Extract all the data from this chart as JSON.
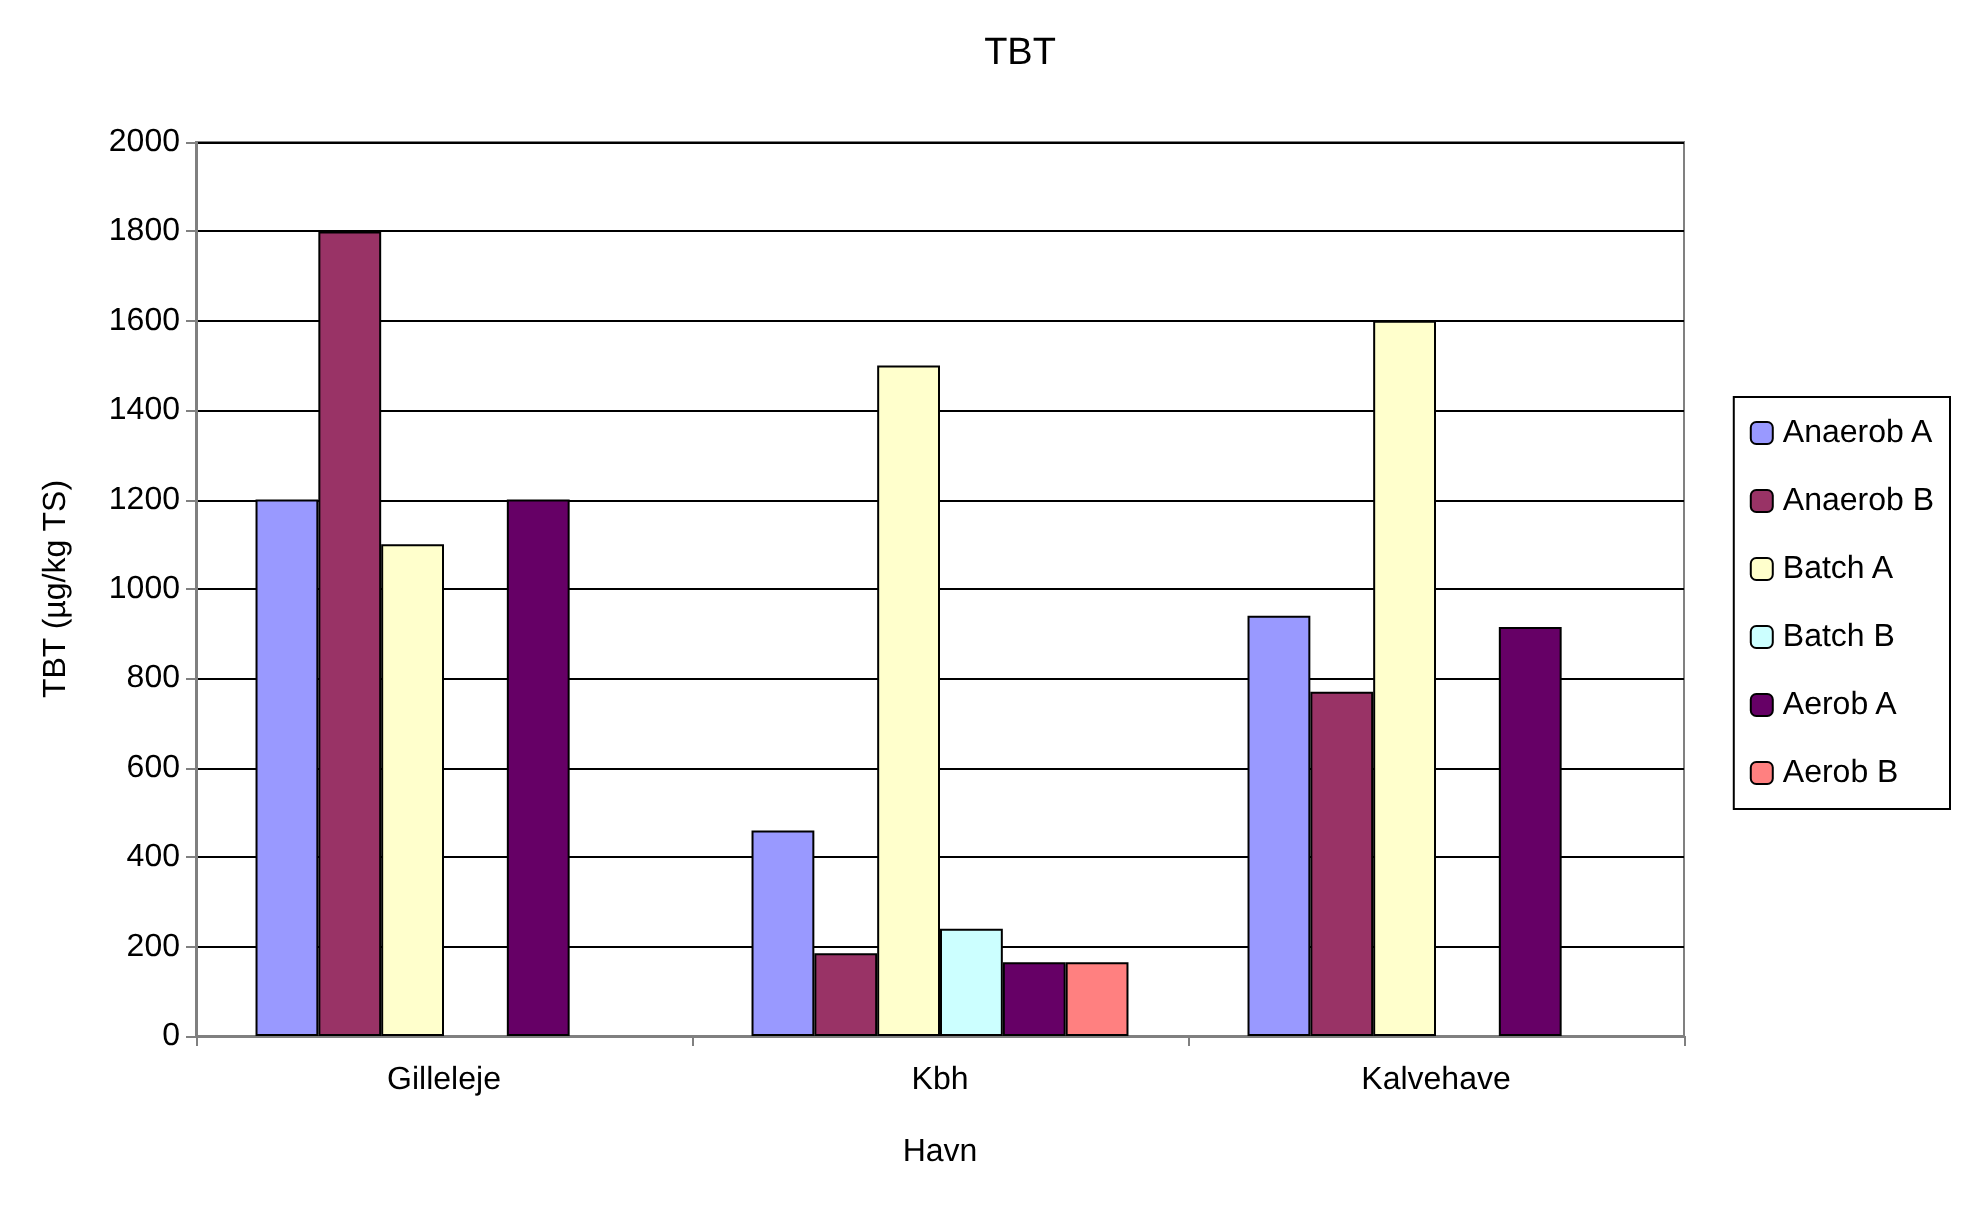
{
  "chart_data": {
    "type": "bar",
    "title": "TBT",
    "xlabel": "Havn",
    "ylabel": "TBT (µg/kg TS)",
    "categories": [
      "Gilleleje",
      "Kbh",
      "Kalvehave"
    ],
    "series": [
      {
        "name": "Anaerob A",
        "color": "#9999ff",
        "values": [
          1200,
          460,
          940
        ]
      },
      {
        "name": "Anaerob B",
        "color": "#993366",
        "values": [
          1800,
          185,
          770
        ]
      },
      {
        "name": "Batch A",
        "color": "#ffffcc",
        "values": [
          1100,
          1500,
          1600
        ]
      },
      {
        "name": "Batch B",
        "color": "#ccffff",
        "values": [
          null,
          240,
          null
        ]
      },
      {
        "name": "Aerob A",
        "color": "#660066",
        "values": [
          1200,
          165,
          915
        ]
      },
      {
        "name": "Aerob B",
        "color": "#ff8080",
        "values": [
          null,
          165,
          null
        ]
      }
    ],
    "ylim": [
      0,
      2000
    ],
    "yticks": [
      0,
      200,
      400,
      600,
      800,
      1000,
      1200,
      1400,
      1600,
      1800,
      2000
    ],
    "grid": "y",
    "legend": "right"
  }
}
